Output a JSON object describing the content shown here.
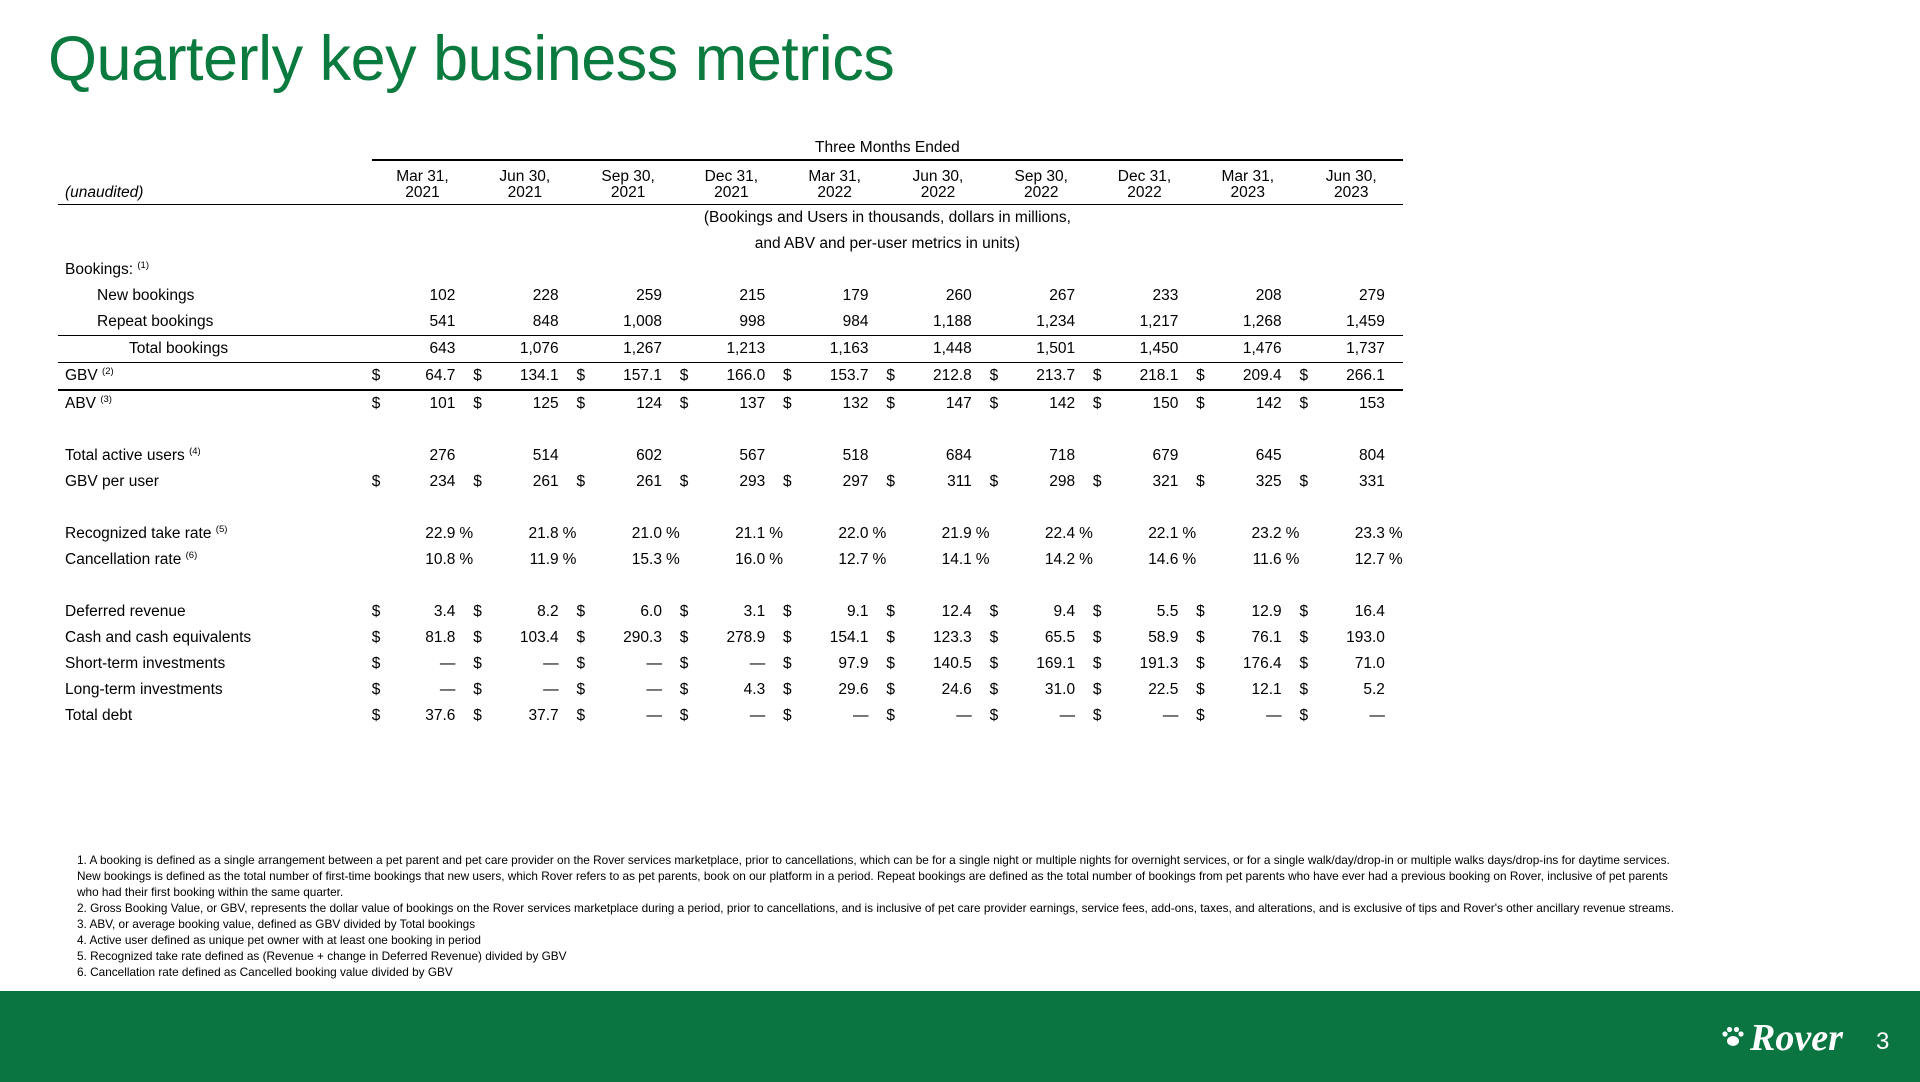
{
  "title": "Quarterly key business metrics",
  "header": {
    "group_label": "Three Months Ended",
    "row_label": "(unaudited)",
    "columns": [
      {
        "line1": "Mar 31,",
        "line2": "2021"
      },
      {
        "line1": "Jun 30,",
        "line2": "2021"
      },
      {
        "line1": "Sep 30,",
        "line2": "2021"
      },
      {
        "line1": "Dec 31,",
        "line2": "2021"
      },
      {
        "line1": "Mar 31,",
        "line2": "2022"
      },
      {
        "line1": "Jun 30,",
        "line2": "2022"
      },
      {
        "line1": "Sep 30,",
        "line2": "2022"
      },
      {
        "line1": "Dec 31,",
        "line2": "2022"
      },
      {
        "line1": "Mar 31,",
        "line2": "2023"
      },
      {
        "line1": "Jun 30,",
        "line2": "2023"
      }
    ],
    "note_line1": "(Bookings and Users in thousands, dollars in millions,",
    "note_line2": "and ABV and per-user metrics in units)"
  },
  "rows": [
    {
      "kind": "section",
      "label": "Bookings:",
      "sup": "(1)"
    },
    {
      "kind": "data",
      "label": "New bookings",
      "indent": 1,
      "dollar": false,
      "values": [
        "102",
        "228",
        "259",
        "215",
        "179",
        "260",
        "267",
        "233",
        "208",
        "279"
      ]
    },
    {
      "kind": "data",
      "label": "Repeat bookings",
      "indent": 1,
      "dollar": false,
      "values": [
        "541",
        "848",
        "1,008",
        "998",
        "984",
        "1,188",
        "1,234",
        "1,217",
        "1,268",
        "1,459"
      ],
      "rule": "bottom"
    },
    {
      "kind": "data",
      "label": "Total bookings",
      "indent": 2,
      "dollar": false,
      "values": [
        "643",
        "1,076",
        "1,267",
        "1,213",
        "1,163",
        "1,448",
        "1,501",
        "1,450",
        "1,476",
        "1,737"
      ],
      "rule": "bottom"
    },
    {
      "kind": "data",
      "label": "GBV",
      "sup": "(2)",
      "indent": 0,
      "dollar": true,
      "values": [
        "64.7",
        "134.1",
        "157.1",
        "166.0",
        "153.7",
        "212.8",
        "213.7",
        "218.1",
        "209.4",
        "266.1"
      ],
      "rule": "bottom-thick"
    },
    {
      "kind": "data",
      "label": "ABV",
      "sup": "(3)",
      "indent": 0,
      "dollar": true,
      "values": [
        "101",
        "125",
        "124",
        "137",
        "132",
        "147",
        "142",
        "150",
        "142",
        "153"
      ]
    },
    {
      "kind": "spacer"
    },
    {
      "kind": "data",
      "label": "Total active users",
      "sup": "(4)",
      "indent": 0,
      "dollar": false,
      "values": [
        "276",
        "514",
        "602",
        "567",
        "518",
        "684",
        "718",
        "679",
        "645",
        "804"
      ]
    },
    {
      "kind": "data",
      "label": "GBV per user",
      "indent": 0,
      "dollar": true,
      "values": [
        "234",
        "261",
        "261",
        "293",
        "297",
        "311",
        "298",
        "321",
        "325",
        "331"
      ]
    },
    {
      "kind": "spacer"
    },
    {
      "kind": "data",
      "label": "Recognized take rate",
      "sup": "(5)",
      "indent": 0,
      "dollar": false,
      "percent": true,
      "values": [
        "22.9",
        "21.8",
        "21.0",
        "21.1",
        "22.0",
        "21.9",
        "22.4",
        "22.1",
        "23.2",
        "23.3"
      ]
    },
    {
      "kind": "data",
      "label": "Cancellation rate",
      "sup": "(6)",
      "indent": 0,
      "dollar": false,
      "percent": true,
      "values": [
        "10.8",
        "11.9",
        "15.3",
        "16.0",
        "12.7",
        "14.1",
        "14.2",
        "14.6",
        "11.6",
        "12.7"
      ]
    },
    {
      "kind": "spacer"
    },
    {
      "kind": "data",
      "label": "Deferred revenue",
      "indent": 0,
      "dollar": true,
      "values": [
        "3.4",
        "8.2",
        "6.0",
        "3.1",
        "9.1",
        "12.4",
        "9.4",
        "5.5",
        "12.9",
        "16.4"
      ]
    },
    {
      "kind": "data",
      "label": "Cash and cash equivalents",
      "indent": 0,
      "dollar": true,
      "values": [
        "81.8",
        "103.4",
        "290.3",
        "278.9",
        "154.1",
        "123.3",
        "65.5",
        "58.9",
        "76.1",
        "193.0"
      ]
    },
    {
      "kind": "data",
      "label": "Short-term investments",
      "indent": 0,
      "dollar": true,
      "values": [
        "—",
        "—",
        "—",
        "—",
        "97.9",
        "140.5",
        "169.1",
        "191.3",
        "176.4",
        "71.0"
      ]
    },
    {
      "kind": "data",
      "label": "Long-term investments",
      "indent": 0,
      "dollar": true,
      "values": [
        "—",
        "—",
        "—",
        "4.3",
        "29.6",
        "24.6",
        "31.0",
        "22.5",
        "12.1",
        "5.2"
      ]
    },
    {
      "kind": "data",
      "label": "Total debt",
      "indent": 0,
      "dollar": true,
      "values": [
        "37.6",
        "37.7",
        "—",
        "—",
        "—",
        "—",
        "—",
        "—",
        "—",
        "—"
      ]
    }
  ],
  "dollar_sign": "$",
  "percent_sign": "%",
  "footnotes": [
    "1. A booking is defined as a single arrangement between a pet parent and pet care provider on the Rover services marketplace, prior to cancellations, which can be for a single night or multiple nights for overnight services, or for a single walk/day/drop-in or multiple walks days/drop-ins for daytime services.",
    "New bookings is defined as the total number of first-time bookings that new users, which Rover refers to as pet parents, book on our platform in a period. Repeat bookings are defined as the total number of bookings from pet parents who have ever had a previous booking on Rover, inclusive of pet parents",
    "who had their first booking within the same quarter.",
    "2. Gross Booking Value, or GBV, represents the dollar value of bookings on the Rover services marketplace during a period, prior to cancellations, and is inclusive of pet care provider earnings, service fees, add-ons, taxes, and alterations, and is exclusive of tips and Rover's other ancillary revenue streams.",
    "3. ABV, or average booking value, defined as GBV divided by Total bookings",
    "4. Active user defined as unique pet owner with at least one booking in period",
    "5. Recognized take rate defined as (Revenue + change in Deferred Revenue) divided by GBV",
    "6. Cancellation rate defined as Cancelled booking value divided by GBV"
  ],
  "footer": {
    "logo_text": "Rover",
    "page_number": "3",
    "logo_icon": "paw-print-icon",
    "bar_color": "#0a7540"
  },
  "colors": {
    "title": "#0b7a3e"
  }
}
